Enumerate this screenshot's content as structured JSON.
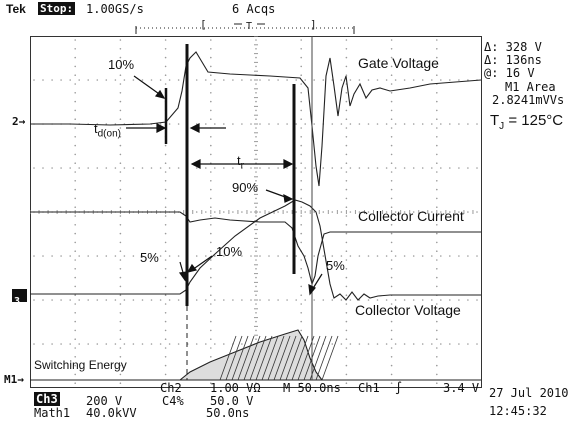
{
  "header": {
    "brand": "Tek",
    "state": "Stop:",
    "sample_rate": "1.00GS/s",
    "acquisitions": "6 Acqs",
    "trigger_marker": "T"
  },
  "readouts": {
    "delta_voltage": "Δ: 328 V",
    "delta_time": "Δ: 136ns",
    "at_voltage": "@: 16 V",
    "math_area_label": "M1 Area",
    "math_area_value": "2.8241mVVs"
  },
  "annotations": {
    "junction_temp": "T",
    "junction_temp_sub": "J",
    "junction_temp_value": " = 125°C",
    "gate_voltage": "Gate Voltage",
    "collector_current": "Collector Current",
    "collector_voltage": "Collector Voltage",
    "switching_energy": "Switching Energy",
    "pct_10_top": "10%",
    "pct_90": "90%",
    "pct_10_mid": "10%",
    "pct_5_left": "5%",
    "pct_5_right": "5%",
    "td_on": "t",
    "td_on_sub": "d(on)",
    "tr": "t",
    "tr_sub": "r"
  },
  "channel_markers": {
    "ch2": "2",
    "ch3": "3",
    "m1": "M1"
  },
  "footer": {
    "ch2_label": "Ch2",
    "ch2_scale": "1.00 VΩ",
    "timebase": "M 50.0ns",
    "trigger_source": "Ch1",
    "trigger_slope": "∫",
    "trigger_level": "3.4 V",
    "date": "27 Jul 2010",
    "ch3_label": "Ch3",
    "ch3_scale": "200 V",
    "ch4_label": "C4%",
    "ch4_scale": "50.0 V",
    "math_label": "Math1",
    "math_scale": "40.0kVV",
    "math_time": "50.0ns",
    "time": "12:45:32"
  },
  "colors": {
    "trace": "#222222",
    "grid_dot": "#9a9a9a",
    "background": "#ffffff"
  }
}
